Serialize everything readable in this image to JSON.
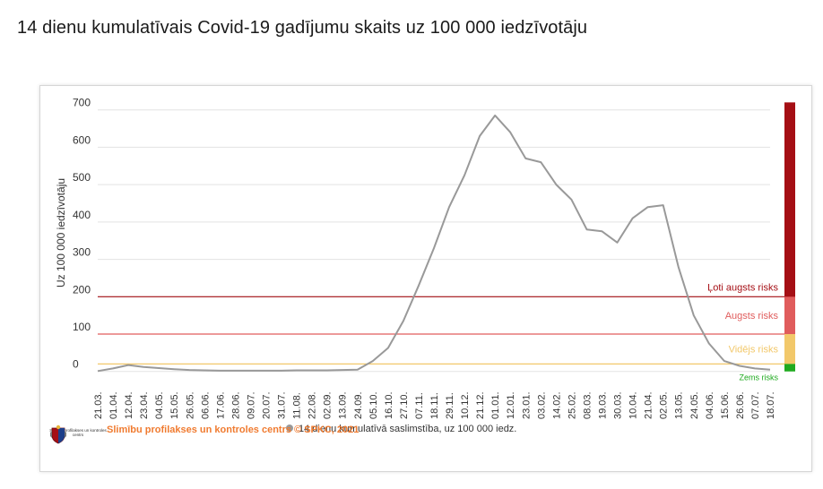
{
  "page": {
    "title": "14 dienu kumulatīvais Covid-19 gadījumu skaits uz 100 000 iedzīvotāju"
  },
  "footer": {
    "logo_caption": "Slimību profilakses un kontroles centrs",
    "credit": "Slimību profilakses un kontroles centrs © SPKC, 2021"
  },
  "colors": {
    "line": "#999999",
    "very_high": "#a50f15",
    "high": "#e05c5c",
    "medium": "#f2c86a",
    "low": "#1faa1f",
    "credit": "#f07b30"
  },
  "chart_data": {
    "type": "line",
    "title": "",
    "xlabel": "",
    "ylabel": "Uz 100 000 iedzīvotāju",
    "ylim": [
      -15,
      740
    ],
    "y_ticks": [
      0,
      100,
      200,
      300,
      400,
      500,
      600,
      700
    ],
    "x_tick_labels": [
      "21.03.",
      "01.04.",
      "12.04.",
      "23.04.",
      "04.05.",
      "15.05.",
      "26.05.",
      "06.06.",
      "17.06.",
      "28.06.",
      "09.07.",
      "20.07.",
      "31.07.",
      "11.08.",
      "22.08.",
      "02.09.",
      "13.09.",
      "24.09.",
      "05.10.",
      "16.10.",
      "27.10.",
      "07.11.",
      "18.11.",
      "29.11.",
      "10.12.",
      "21.12.",
      "01.01.",
      "12.01.",
      "23.01.",
      "03.02.",
      "14.02.",
      "25.02.",
      "08.03.",
      "19.03.",
      "30.03.",
      "10.04.",
      "21.04.",
      "02.05.",
      "13.05.",
      "24.05.",
      "04.06.",
      "15.06.",
      "26.06.",
      "07.07.",
      "18.07."
    ],
    "legend": {
      "position": "bottom",
      "entries": [
        "14 dienu kumulatīvā saslimstība, uz 100 000 iedz."
      ]
    },
    "grid": true,
    "series": [
      {
        "name": "14 dienu kumulatīvā saslimstība, uz 100 000 iedz.",
        "values": [
          1,
          8,
          17,
          12,
          9,
          6,
          4,
          3,
          2,
          2,
          2,
          2,
          2,
          3,
          3,
          3,
          4,
          5,
          28,
          63,
          135,
          230,
          330,
          440,
          525,
          630,
          685,
          640,
          570,
          560,
          500,
          460,
          380,
          375,
          345,
          410,
          440,
          445,
          280,
          150,
          75,
          28,
          15,
          8,
          5
        ]
      }
    ],
    "thresholds": [
      {
        "label": "Ļoti augsts risks",
        "value": 200,
        "band": [
          200,
          720
        ]
      },
      {
        "label": "Augsts risks",
        "value": 100,
        "band": [
          100,
          200
        ]
      },
      {
        "label": "Vidējs risks",
        "value": 20,
        "band": [
          20,
          100
        ]
      },
      {
        "label": "Zems risks",
        "value": 0,
        "band": [
          0,
          20
        ]
      }
    ]
  }
}
